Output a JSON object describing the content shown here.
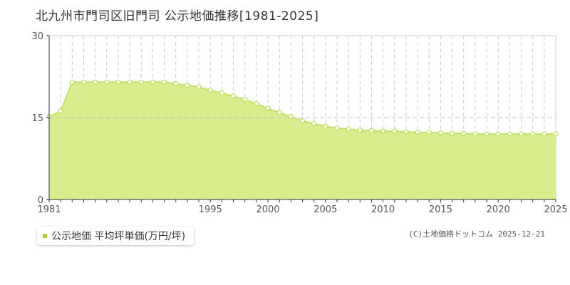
{
  "title": "北九州市門司区旧門司 公示地価推移[1981-2025]",
  "legend": {
    "label": "公示地価 平均坪単価(万円/坪)"
  },
  "copyright": "(C)土地価格ドットコム 2025-12-21",
  "colors": {
    "fill": "#d9ec8e",
    "line": "#b8de4f",
    "marker_fill": "#ffffff",
    "legend": "#a9d23a",
    "grid": "#cccccc"
  },
  "chart_data": {
    "type": "area",
    "title": "",
    "xlabel": "",
    "ylabel": "",
    "xlim": [
      1981,
      2025
    ],
    "ylim": [
      0,
      30
    ],
    "y_ticks": [
      0,
      15,
      30
    ],
    "x_ticks": [
      1981,
      1995,
      2000,
      2005,
      2010,
      2015,
      2020,
      2025
    ],
    "grid": true,
    "legend_position": "bottom-left",
    "series": [
      {
        "name": "公示地価 平均坪単価(万円/坪)",
        "x": [
          1981,
          1982,
          1983,
          1984,
          1985,
          1986,
          1987,
          1988,
          1989,
          1990,
          1991,
          1992,
          1993,
          1994,
          1995,
          1996,
          1997,
          1998,
          1999,
          2000,
          2001,
          2002,
          2003,
          2004,
          2005,
          2006,
          2007,
          2008,
          2009,
          2010,
          2011,
          2012,
          2013,
          2014,
          2015,
          2016,
          2017,
          2018,
          2019,
          2020,
          2021,
          2022,
          2023,
          2024,
          2025
        ],
        "values": [
          15.2,
          16.2,
          21.5,
          21.5,
          21.5,
          21.5,
          21.5,
          21.5,
          21.5,
          21.5,
          21.5,
          21.2,
          20.9,
          20.6,
          20.0,
          19.5,
          18.9,
          18.3,
          17.5,
          16.7,
          15.9,
          15.2,
          14.4,
          13.9,
          13.4,
          13.1,
          12.9,
          12.7,
          12.6,
          12.5,
          12.5,
          12.4,
          12.3,
          12.3,
          12.2,
          12.1,
          12.1,
          12.0,
          12.0,
          12.0,
          12.0,
          12.0,
          12.0,
          12.0,
          12.0
        ]
      }
    ]
  }
}
